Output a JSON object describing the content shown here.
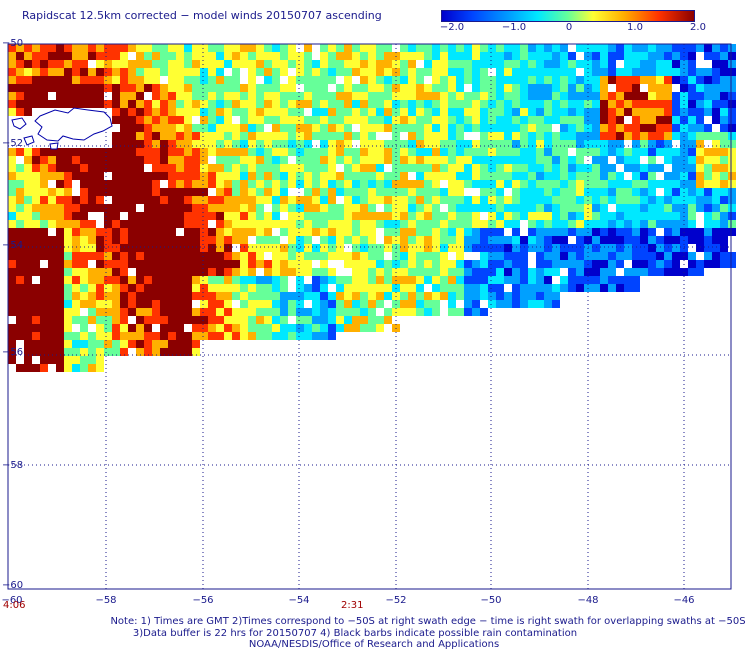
{
  "title": "Rapidscat 12.5km corrected − model winds 20150707 ascending",
  "colorbar": {
    "ticks": [
      "−2.0",
      "−1.0",
      "0",
      "1.0",
      "2.0"
    ],
    "range": [
      -2.0,
      2.0
    ]
  },
  "map": {
    "lat_labels": [
      "−50",
      "−52",
      "−54",
      "−56",
      "−58",
      "−60"
    ],
    "lon_labels": [
      "−60",
      "−58",
      "−56",
      "−54",
      "−52",
      "−50",
      "−48",
      "−46"
    ],
    "lon_range": [
      -60,
      -45
    ],
    "lat_range": [
      -60,
      -50
    ]
  },
  "times": [
    "4:06",
    "2:31"
  ],
  "notes": [
    "Note: 1) Times are GMT 2)Times correspond to −50S at right swath edge − time is right swath for overlapping swaths at −50S",
    "3)Data buffer is 22 hrs for 20150707 4) Black barbs indicate possible rain contamination",
    "NOAA/NESDIS/Office of Research and Applications"
  ],
  "colors": {
    "text": "#1a1a8c",
    "time_text": "#a00000",
    "grid": "#1a1a8c",
    "land": "#ffffff",
    "coast": "#0000aa"
  }
}
